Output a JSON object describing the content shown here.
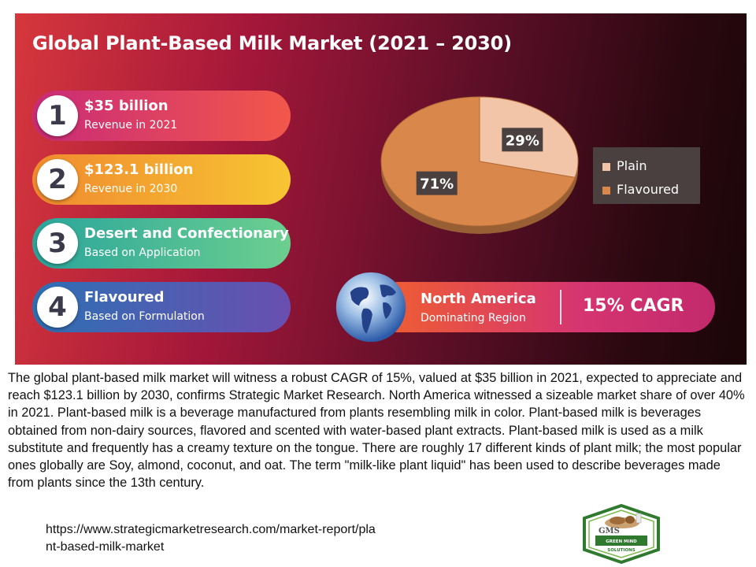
{
  "title": "Global Plant-Based Milk Market (2021 – 2030)",
  "highlights": [
    {
      "number": "1",
      "value": "$35 billion",
      "label": "Revenue in 2021"
    },
    {
      "number": "2",
      "value": "$123.1 billion",
      "label": "Revenue in 2030"
    },
    {
      "number": "3",
      "value": "Desert and Confectionary",
      "label": "Based on Application"
    },
    {
      "number": "4",
      "value": "Flavoured",
      "label": "Based on Formulation"
    }
  ],
  "region": {
    "name": "North America",
    "label": "Dominating Region",
    "cagr": "15% CAGR"
  },
  "chart_data": {
    "type": "pie",
    "labels": [
      "Plain",
      "Flavoured"
    ],
    "values": [
      29,
      71
    ],
    "data_labels": [
      "29%",
      "71%"
    ],
    "colors": [
      "#f2c4a8",
      "#d9874a"
    ],
    "legend_position": "right"
  },
  "description": "The global plant-based milk market will witness a robust CAGR of 15%, valued at $35 billion in 2021, expected to appreciate and reach $123.1 billion by 2030, confirms Strategic Market Research. North America witnessed a sizeable market share of over 40% in 2021. Plant-based milk is a beverage manufactured from plants resembling milk in color. Plant-based milk is beverages obtained from non-dairy sources, flavored and scented with water-based plant extracts. Plant-based milk is used as a milk substitute and frequently has a creamy texture on the tongue. There are roughly 17 different kinds of plant milk; the most popular ones globally are Soy, almond, coconut, and oat. The term \"milk-like plant liquid\" has been used to describe beverages made from plants since the 13th century.",
  "source_url": "https://www.strategicmarketresearch.com/market-report/plant-based-milk-market",
  "logo": {
    "name": "GMS",
    "tagline": "GREEN MIND SOLUTIONS"
  }
}
